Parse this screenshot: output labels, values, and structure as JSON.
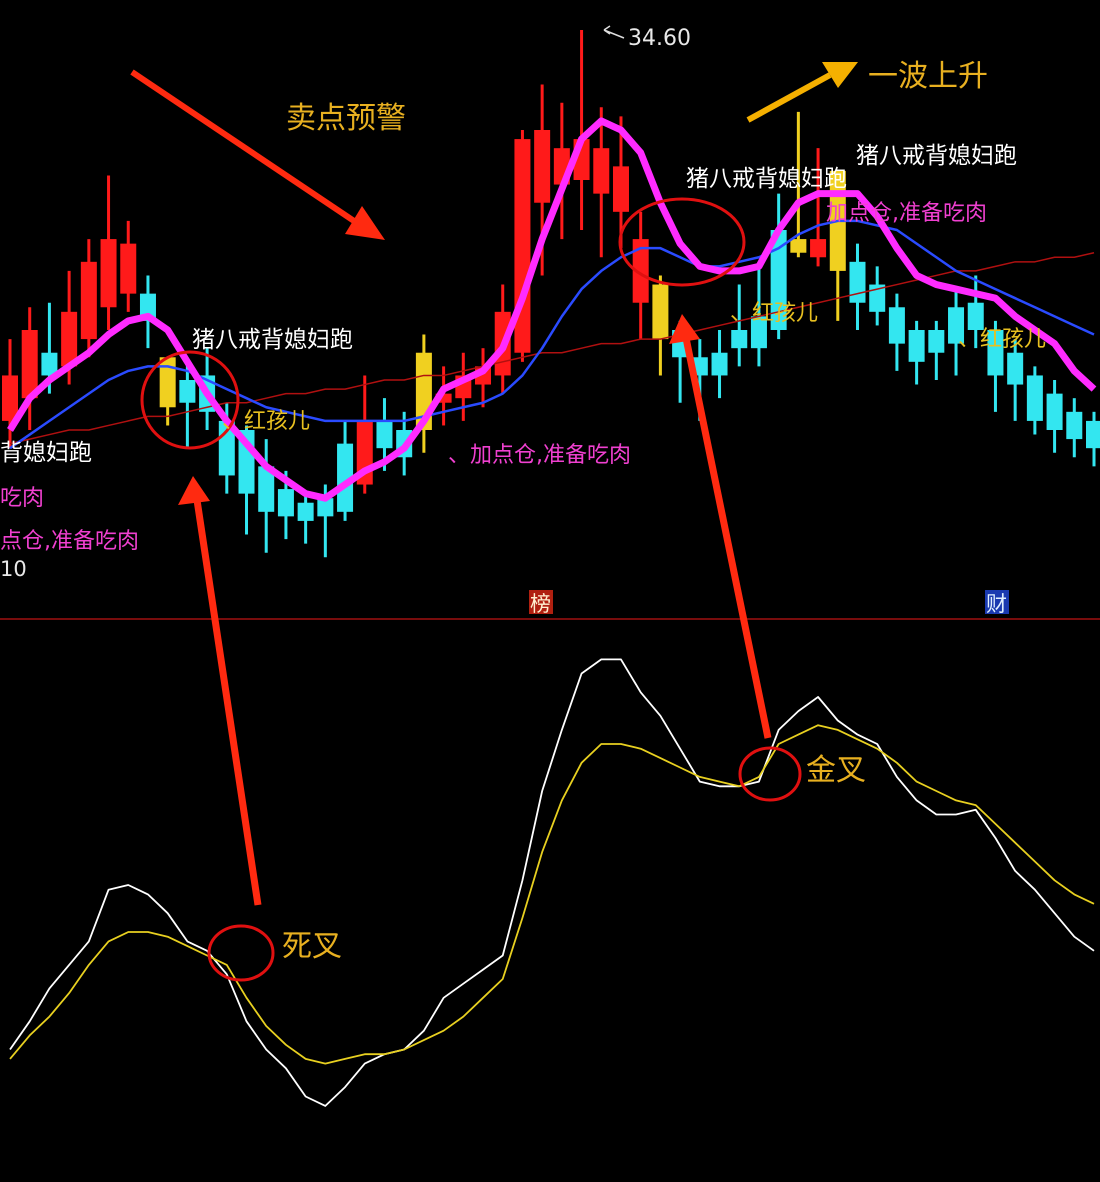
{
  "chart_data": [
    {
      "type": "candlestick",
      "panel": "price",
      "colors": {
        "up": "#ff1a1a",
        "down": "#33e6f0",
        "signal": "#f0d020",
        "ma_fast": "#ff2bff",
        "ma_mid": "#2a4bff",
        "ma_slow": "#b01010"
      },
      "peak_label": "34.60",
      "candles": [
        {
          "o": 26.0,
          "h": 27.8,
          "l": 25.4,
          "c": 27.0
        },
        {
          "o": 26.5,
          "h": 28.5,
          "l": 25.8,
          "c": 28.0
        },
        {
          "o": 27.5,
          "h": 28.6,
          "l": 26.6,
          "c": 27.0
        },
        {
          "o": 27.2,
          "h": 29.3,
          "l": 26.8,
          "c": 28.4
        },
        {
          "o": 27.8,
          "h": 30.0,
          "l": 27.4,
          "c": 29.5
        },
        {
          "o": 28.5,
          "h": 31.4,
          "l": 28.0,
          "c": 30.0
        },
        {
          "o": 28.8,
          "h": 30.4,
          "l": 28.4,
          "c": 29.9
        },
        {
          "o": 28.8,
          "h": 29.2,
          "l": 27.6,
          "c": 28.2
        },
        {
          "o": 27.4,
          "h": 27.4,
          "l": 25.9,
          "c": 26.3,
          "signal": true
        },
        {
          "o": 26.9,
          "h": 27.3,
          "l": 25.4,
          "c": 26.4
        },
        {
          "o": 27.0,
          "h": 27.6,
          "l": 25.8,
          "c": 26.2
        },
        {
          "o": 26.0,
          "h": 26.4,
          "l": 24.4,
          "c": 24.8
        },
        {
          "o": 25.8,
          "h": 25.9,
          "l": 23.5,
          "c": 24.4
        },
        {
          "o": 25.0,
          "h": 25.6,
          "l": 23.1,
          "c": 24.0
        },
        {
          "o": 24.5,
          "h": 24.9,
          "l": 23.4,
          "c": 23.9
        },
        {
          "o": 24.2,
          "h": 24.4,
          "l": 23.3,
          "c": 23.8
        },
        {
          "o": 24.3,
          "h": 24.6,
          "l": 23.0,
          "c": 23.9
        },
        {
          "o": 25.5,
          "h": 26.0,
          "l": 23.8,
          "c": 24.0
        },
        {
          "o": 24.6,
          "h": 27.0,
          "l": 24.4,
          "c": 26.0
        },
        {
          "o": 26.0,
          "h": 26.5,
          "l": 24.9,
          "c": 25.4
        },
        {
          "o": 25.8,
          "h": 26.2,
          "l": 24.8,
          "c": 25.2
        },
        {
          "o": 25.8,
          "h": 27.9,
          "l": 25.3,
          "c": 27.5,
          "signal": true
        },
        {
          "o": 26.4,
          "h": 27.2,
          "l": 25.9,
          "c": 26.6
        },
        {
          "o": 26.5,
          "h": 27.5,
          "l": 26.0,
          "c": 27.0
        },
        {
          "o": 26.8,
          "h": 27.6,
          "l": 26.3,
          "c": 27.2
        },
        {
          "o": 27.0,
          "h": 29.0,
          "l": 26.6,
          "c": 28.4
        },
        {
          "o": 27.5,
          "h": 32.4,
          "l": 27.3,
          "c": 32.2
        },
        {
          "o": 30.8,
          "h": 33.4,
          "l": 29.2,
          "c": 32.4
        },
        {
          "o": 31.2,
          "h": 33.0,
          "l": 30.0,
          "c": 32.0
        },
        {
          "o": 31.3,
          "h": 34.6,
          "l": 30.2,
          "c": 32.2
        },
        {
          "o": 31.0,
          "h": 32.9,
          "l": 29.6,
          "c": 32.0
        },
        {
          "o": 30.6,
          "h": 32.7,
          "l": 29.8,
          "c": 31.6
        },
        {
          "o": 28.6,
          "h": 30.6,
          "l": 27.8,
          "c": 30.0
        },
        {
          "o": 29.0,
          "h": 29.2,
          "l": 27.0,
          "c": 27.8,
          "signal": true
        },
        {
          "o": 28.0,
          "h": 28.2,
          "l": 26.4,
          "c": 27.4
        },
        {
          "o": 27.4,
          "h": 27.8,
          "l": 26.0,
          "c": 27.0
        },
        {
          "o": 27.5,
          "h": 28.0,
          "l": 26.5,
          "c": 27.0
        },
        {
          "o": 28.0,
          "h": 29.0,
          "l": 27.2,
          "c": 27.6
        },
        {
          "o": 28.3,
          "h": 29.4,
          "l": 27.2,
          "c": 27.6
        },
        {
          "o": 30.2,
          "h": 31.0,
          "l": 27.8,
          "c": 28.0
        },
        {
          "o": 30.0,
          "h": 32.8,
          "l": 29.6,
          "c": 29.7,
          "signal": true
        },
        {
          "o": 29.6,
          "h": 32.0,
          "l": 29.4,
          "c": 30.0
        },
        {
          "o": 31.5,
          "h": 31.5,
          "l": 28.2,
          "c": 29.3,
          "signal": true
        },
        {
          "o": 29.5,
          "h": 29.9,
          "l": 28.0,
          "c": 28.6
        },
        {
          "o": 29.0,
          "h": 29.4,
          "l": 28.1,
          "c": 28.4
        },
        {
          "o": 28.5,
          "h": 28.8,
          "l": 27.1,
          "c": 27.7
        },
        {
          "o": 28.0,
          "h": 28.2,
          "l": 26.8,
          "c": 27.3
        },
        {
          "o": 28.0,
          "h": 28.2,
          "l": 26.9,
          "c": 27.5
        },
        {
          "o": 28.5,
          "h": 28.9,
          "l": 27.0,
          "c": 27.7
        },
        {
          "o": 28.6,
          "h": 29.2,
          "l": 27.6,
          "c": 28.0
        },
        {
          "o": 28.0,
          "h": 28.2,
          "l": 26.2,
          "c": 27.0
        },
        {
          "o": 27.5,
          "h": 27.8,
          "l": 26.0,
          "c": 26.8
        },
        {
          "o": 27.0,
          "h": 27.2,
          "l": 25.7,
          "c": 26.0
        },
        {
          "o": 26.6,
          "h": 26.9,
          "l": 25.3,
          "c": 25.8
        },
        {
          "o": 26.2,
          "h": 26.5,
          "l": 25.2,
          "c": 25.6
        },
        {
          "o": 26.0,
          "h": 26.2,
          "l": 25.0,
          "c": 25.4
        }
      ],
      "ma_fast": [
        25.8,
        26.5,
        26.9,
        27.2,
        27.5,
        27.9,
        28.2,
        28.3,
        28.0,
        27.3,
        26.6,
        26.0,
        25.5,
        25.0,
        24.7,
        24.4,
        24.3,
        24.6,
        24.9,
        25.1,
        25.4,
        26.0,
        26.7,
        26.9,
        27.1,
        27.6,
        28.7,
        30.0,
        31.1,
        32.2,
        32.6,
        32.4,
        31.9,
        30.8,
        29.9,
        29.4,
        29.3,
        29.3,
        29.4,
        30.2,
        30.8,
        31.0,
        31.0,
        31.0,
        30.5,
        29.8,
        29.2,
        29.0,
        28.9,
        28.8,
        28.7,
        28.3,
        28.0,
        27.7,
        27.1,
        26.7
      ],
      "ma_mid": [
        25.4,
        25.7,
        26.0,
        26.3,
        26.6,
        26.9,
        27.1,
        27.2,
        27.2,
        27.1,
        26.9,
        26.7,
        26.5,
        26.3,
        26.2,
        26.1,
        26.0,
        26.0,
        26.0,
        26.0,
        26.0,
        26.1,
        26.2,
        26.3,
        26.4,
        26.6,
        27.0,
        27.6,
        28.3,
        28.9,
        29.3,
        29.6,
        29.8,
        29.8,
        29.6,
        29.4,
        29.4,
        29.5,
        29.6,
        29.8,
        30.1,
        30.3,
        30.4,
        30.4,
        30.3,
        30.2,
        29.9,
        29.6,
        29.3,
        29.1,
        28.9,
        28.7,
        28.5,
        28.3,
        28.1,
        27.9
      ],
      "ma_slow": [
        25.5,
        25.6,
        25.7,
        25.8,
        25.8,
        25.9,
        26.0,
        26.1,
        26.1,
        26.2,
        26.3,
        26.4,
        26.4,
        26.5,
        26.6,
        26.6,
        26.7,
        26.7,
        26.8,
        26.9,
        26.9,
        27.0,
        27.0,
        27.1,
        27.2,
        27.3,
        27.4,
        27.5,
        27.5,
        27.6,
        27.7,
        27.7,
        27.8,
        27.8,
        27.9,
        28.0,
        28.1,
        28.2,
        28.3,
        28.4,
        28.5,
        28.6,
        28.7,
        28.8,
        28.9,
        29.0,
        29.1,
        29.2,
        29.3,
        29.3,
        29.4,
        29.5,
        29.5,
        29.6,
        29.6,
        29.7
      ]
    },
    {
      "type": "line",
      "panel": "indicator",
      "ylim": [
        0,
        100
      ],
      "series": [
        {
          "color": "#ffffff",
          "values": [
            15,
            21,
            28,
            33,
            38,
            49,
            50,
            48,
            44,
            38,
            36,
            31,
            21,
            15,
            11,
            5,
            3,
            7,
            12,
            14,
            15,
            19,
            26,
            29,
            32,
            35,
            51,
            70,
            83,
            95,
            98,
            98,
            91,
            86,
            79,
            72,
            71,
            71,
            72,
            83,
            87,
            90,
            85,
            82,
            80,
            73,
            68,
            65,
            65,
            66,
            60,
            53,
            49,
            44,
            39,
            36
          ]
        },
        {
          "color": "#e8d020",
          "values": [
            13,
            18,
            22,
            27,
            33,
            38,
            40,
            40,
            39,
            37,
            35,
            33,
            26,
            20,
            16,
            13,
            12,
            13,
            14,
            14,
            15,
            17,
            19,
            22,
            26,
            30,
            43,
            57,
            68,
            76,
            80,
            80,
            79,
            77,
            75,
            73,
            72,
            71,
            73,
            80,
            82,
            84,
            83,
            81,
            79,
            76,
            72,
            70,
            68,
            67,
            63,
            59,
            55,
            51,
            48,
            46
          ]
        }
      ]
    }
  ],
  "annotations": {
    "sell_warning": "卖点预警",
    "wave_up": "一波上升",
    "pig_label_1": "猪八戒背媳妇跑",
    "pig_label_2": "猪八戒背媳妇跑",
    "pig_label_3": "猪八戒背媳妇跑",
    "pig_label_left": "背媳妇跑",
    "red_boy_1": "、红孩儿",
    "red_boy_2": "、红孩儿",
    "red_boy_3": "、红孩儿",
    "add_pos_1": "、加点仓,准备吃肉",
    "add_pos_2": "加点仓,准备吃肉",
    "left_eat": "吃肉",
    "left_add": "点仓,准备吃肉",
    "left_num": "10",
    "marker_bang": "榜",
    "marker_cai": "财",
    "death_cross": "死叉",
    "golden_cross": "金叉"
  }
}
